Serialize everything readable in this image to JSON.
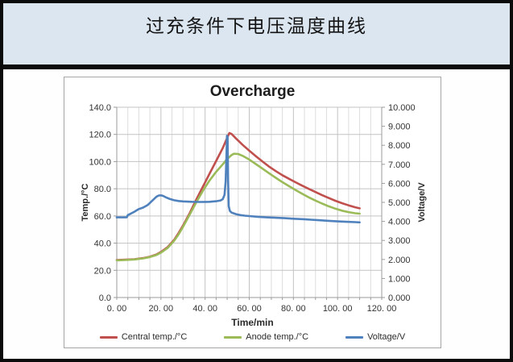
{
  "header": {
    "title": "过充条件下电压温度曲线"
  },
  "chart_data": {
    "type": "line",
    "title": "Overcharge",
    "xlabel": "Time/min",
    "ylabel_left": "Temp./°C",
    "ylabel_right": "Voltage/V",
    "x_range": [
      0,
      120
    ],
    "x_major_step": 20,
    "x_minor_step": 5,
    "x_tick_labels": [
      "0. 00",
      "20. 00",
      "40. 00",
      "60. 00",
      "80. 00",
      "100. 00",
      "120. 00"
    ],
    "y_left_range": [
      0,
      140
    ],
    "y_left_step": 20,
    "y_left_tick_labels": [
      "0.0",
      "20.0",
      "40.0",
      "60.0",
      "80.0",
      "100.0",
      "120.0",
      "140.0"
    ],
    "y_right_range": [
      0,
      10
    ],
    "y_right_step": 1,
    "y_right_tick_labels": [
      "0.000",
      "1.000",
      "2.000",
      "3.000",
      "4.000",
      "5.000",
      "6.000",
      "7.000",
      "8.000",
      "9.000",
      "10.000"
    ],
    "grid": true,
    "legend_position": "bottom",
    "series": [
      {
        "id": "central-temp",
        "name": "Central temp./°C",
        "axis": "left",
        "color": "#C0504D",
        "points": [
          [
            0,
            27.5
          ],
          [
            4,
            27.8
          ],
          [
            8,
            28.2
          ],
          [
            12,
            29
          ],
          [
            15,
            30
          ],
          [
            18,
            31.7
          ],
          [
            20,
            33.5
          ],
          [
            23,
            37
          ],
          [
            26,
            42.5
          ],
          [
            28,
            47.5
          ],
          [
            30,
            53
          ],
          [
            33,
            62
          ],
          [
            36,
            72
          ],
          [
            39,
            81.5
          ],
          [
            42,
            91
          ],
          [
            45,
            100.5
          ],
          [
            48,
            110
          ],
          [
            50,
            117.5
          ],
          [
            51,
            121
          ],
          [
            52,
            120.3
          ],
          [
            54,
            117
          ],
          [
            57,
            112.3
          ],
          [
            60,
            108
          ],
          [
            63,
            104
          ],
          [
            66,
            100
          ],
          [
            69,
            96.3
          ],
          [
            72,
            93
          ],
          [
            75,
            90
          ],
          [
            78,
            87.3
          ],
          [
            81,
            84.8
          ],
          [
            84,
            82.3
          ],
          [
            87,
            79.9
          ],
          [
            90,
            77.6
          ],
          [
            93,
            75.3
          ],
          [
            96,
            73.2
          ],
          [
            99,
            71.2
          ],
          [
            102,
            69.4
          ],
          [
            105,
            67.8
          ],
          [
            108,
            66.4
          ],
          [
            110,
            65.6
          ]
        ]
      },
      {
        "id": "anode-temp",
        "name": "Anode temp./°C",
        "axis": "left",
        "color": "#9BBB59",
        "points": [
          [
            0,
            27.3
          ],
          [
            4,
            27.6
          ],
          [
            8,
            28
          ],
          [
            12,
            28.8
          ],
          [
            15,
            29.8
          ],
          [
            18,
            31.3
          ],
          [
            20,
            33
          ],
          [
            23,
            36.4
          ],
          [
            26,
            41.8
          ],
          [
            28,
            46.5
          ],
          [
            30,
            52
          ],
          [
            33,
            61
          ],
          [
            36,
            70
          ],
          [
            39,
            78.5
          ],
          [
            42,
            86
          ],
          [
            45,
            92.5
          ],
          [
            48,
            98
          ],
          [
            50,
            102
          ],
          [
            52,
            104.8
          ],
          [
            53,
            105.8
          ],
          [
            55,
            105.6
          ],
          [
            57,
            104.2
          ],
          [
            60,
            101.5
          ],
          [
            63,
            98.2
          ],
          [
            66,
            94.8
          ],
          [
            69,
            91.4
          ],
          [
            72,
            88.1
          ],
          [
            75,
            84.9
          ],
          [
            78,
            81.9
          ],
          [
            81,
            79
          ],
          [
            84,
            76.3
          ],
          [
            87,
            73.7
          ],
          [
            90,
            71.3
          ],
          [
            93,
            69.1
          ],
          [
            96,
            67.1
          ],
          [
            99,
            65.4
          ],
          [
            102,
            63.9
          ],
          [
            105,
            62.8
          ],
          [
            108,
            62
          ],
          [
            110,
            61.7
          ]
        ]
      },
      {
        "id": "voltage",
        "name": "Voltage/V",
        "axis": "right",
        "color": "#4F81BD",
        "points": [
          [
            0,
            4.21
          ],
          [
            4,
            4.21
          ],
          [
            4.6,
            4.22
          ],
          [
            5,
            4.33
          ],
          [
            6,
            4.39
          ],
          [
            7,
            4.45
          ],
          [
            8,
            4.51
          ],
          [
            9,
            4.58
          ],
          [
            10,
            4.65
          ],
          [
            12,
            4.73
          ],
          [
            14,
            4.86
          ],
          [
            16,
            5.08
          ],
          [
            18,
            5.3
          ],
          [
            19,
            5.36
          ],
          [
            20,
            5.37
          ],
          [
            21,
            5.34
          ],
          [
            22,
            5.28
          ],
          [
            24,
            5.18
          ],
          [
            26,
            5.11
          ],
          [
            28,
            5.07
          ],
          [
            30,
            5.05
          ],
          [
            34,
            5.03
          ],
          [
            38,
            5.02
          ],
          [
            42,
            5.03
          ],
          [
            45,
            5.06
          ],
          [
            47,
            5.1
          ],
          [
            48,
            5.17
          ],
          [
            48.8,
            5.4
          ],
          [
            49.3,
            6.1
          ],
          [
            49.7,
            7.6
          ],
          [
            49.9,
            8.5
          ],
          [
            50.2,
            8.45
          ],
          [
            50.4,
            6.2
          ],
          [
            50.7,
            4.8
          ],
          [
            51.2,
            4.55
          ],
          [
            52,
            4.46
          ],
          [
            54,
            4.38
          ],
          [
            56,
            4.33
          ],
          [
            58,
            4.3
          ],
          [
            60,
            4.28
          ],
          [
            64,
            4.24
          ],
          [
            68,
            4.21
          ],
          [
            72,
            4.19
          ],
          [
            76,
            4.17
          ],
          [
            80,
            4.14
          ],
          [
            84,
            4.12
          ],
          [
            88,
            4.09
          ],
          [
            92,
            4.06
          ],
          [
            96,
            4.03
          ],
          [
            100,
            4.0
          ],
          [
            104,
            3.98
          ],
          [
            108,
            3.96
          ],
          [
            110,
            3.95
          ]
        ]
      }
    ]
  }
}
